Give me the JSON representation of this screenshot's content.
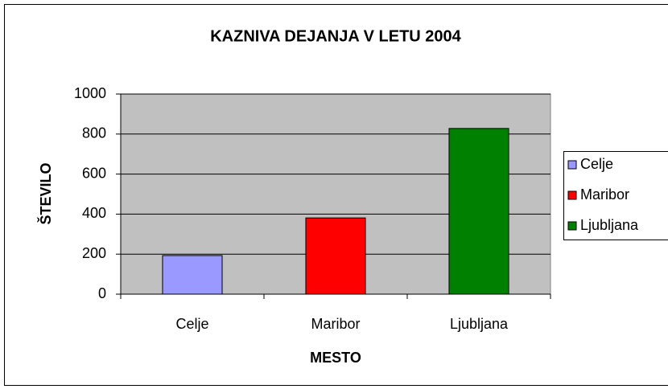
{
  "chart_data": {
    "type": "bar",
    "title": "KAZNIVA DEJANJA V LETU 2004",
    "x_label": "MESTO",
    "y_label": "ŠTEVILO",
    "categories": [
      "Celje",
      "Maribor",
      "Ljubljana"
    ],
    "values": [
      193,
      381,
      828
    ],
    "colors": [
      "#9999ff",
      "#ff0000",
      "#008000"
    ],
    "ylim": [
      0,
      1000
    ],
    "yticks": [
      0,
      200,
      400,
      600,
      800,
      1000
    ],
    "grid": true,
    "legend": "right"
  }
}
